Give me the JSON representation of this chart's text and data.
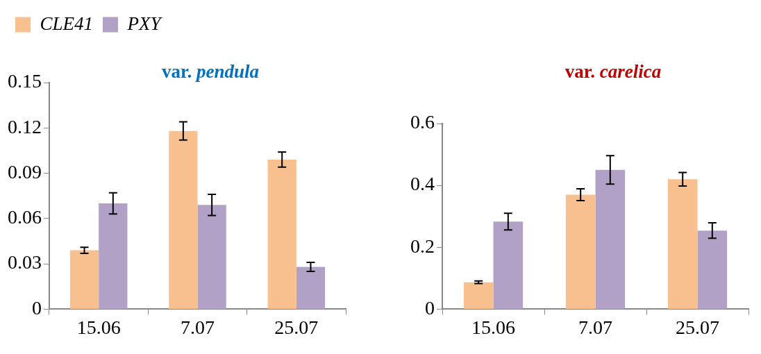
{
  "chart_data": [
    {
      "type": "bar",
      "title": "var. pendula",
      "categories": [
        "15.06",
        "7.07",
        "25.07"
      ],
      "ylim": [
        0,
        0.15
      ],
      "yticks": [
        0,
        0.03,
        0.06,
        0.09,
        0.12,
        0.15
      ],
      "legend": "top left",
      "grid": false,
      "series": [
        {
          "name": "CLE41",
          "color": "#f9c08f",
          "values": [
            0.039,
            0.118,
            0.099
          ],
          "errors": [
            0.002,
            0.006,
            0.005
          ]
        },
        {
          "name": "PXY",
          "color": "#b1a1c7",
          "values": [
            0.07,
            0.069,
            0.028
          ],
          "errors": [
            0.007,
            0.007,
            0.003
          ]
        }
      ]
    },
    {
      "type": "bar",
      "title": "var. carelica",
      "categories": [
        "15.06",
        "7.07",
        "25.07"
      ],
      "ylim": [
        0,
        0.6
      ],
      "yticks": [
        0,
        0.2,
        0.4,
        0.6
      ],
      "grid": false,
      "series": [
        {
          "color": "#f9c08f",
          "values": [
            0.087,
            0.37,
            0.42
          ],
          "errors": [
            0.004,
            0.019,
            0.022
          ]
        },
        {
          "color": "#b1a1c7",
          "values": [
            0.283,
            0.45,
            0.254
          ],
          "errors": [
            0.027,
            0.046,
            0.025
          ]
        }
      ]
    }
  ]
}
